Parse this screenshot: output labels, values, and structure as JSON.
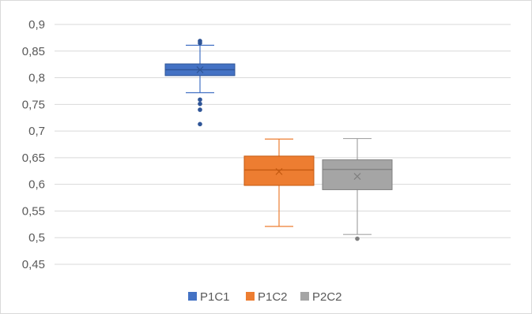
{
  "chart_data": {
    "type": "box",
    "title": "",
    "xlabel": "",
    "ylabel": "",
    "ylim": [
      0.45,
      0.9
    ],
    "yticks": [
      "0,9",
      "0,85",
      "0,8",
      "0,75",
      "0,7",
      "0,65",
      "0,6",
      "0,55",
      "0,5",
      "0,45"
    ],
    "ytick_values": [
      0.9,
      0.85,
      0.8,
      0.75,
      0.7,
      0.65,
      0.6,
      0.55,
      0.5,
      0.45
    ],
    "grid": true,
    "legend_position": "bottom",
    "series": [
      {
        "name": "P1C1",
        "color": "#4472c4",
        "whisker_low": 0.772,
        "q1": 0.804,
        "median": 0.815,
        "q3": 0.826,
        "whisker_high": 0.861,
        "mean": 0.815,
        "outliers": [
          0.869,
          0.865,
          0.759,
          0.751,
          0.74,
          0.713
        ]
      },
      {
        "name": "P1C2",
        "color": "#ed7d31",
        "whisker_low": 0.521,
        "q1": 0.598,
        "median": 0.627,
        "q3": 0.653,
        "whisker_high": 0.685,
        "mean": 0.624,
        "outliers": []
      },
      {
        "name": "P2C2",
        "color": "#a5a5a5",
        "whisker_low": 0.506,
        "q1": 0.59,
        "median": 0.628,
        "q3": 0.646,
        "whisker_high": 0.686,
        "mean": 0.615,
        "outliers": [
          0.498
        ]
      }
    ]
  }
}
